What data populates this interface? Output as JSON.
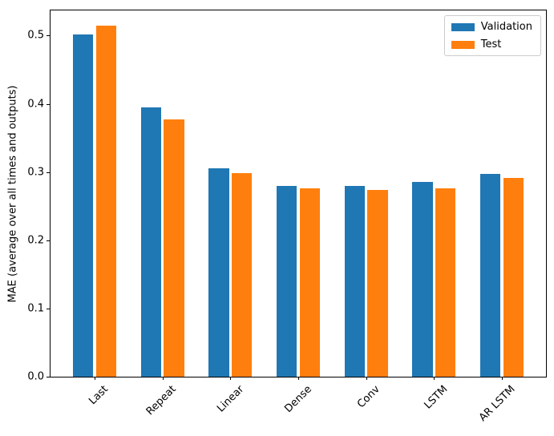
{
  "figure": {
    "background": "#ffffff"
  },
  "chart_data": {
    "type": "bar",
    "title": "",
    "xlabel": "",
    "ylabel": "MAE (average over all times and outputs)",
    "categories": [
      "Last",
      "Repeat",
      "Linear",
      "Dense",
      "Conv",
      "LSTM",
      "AR LSTM"
    ],
    "series": [
      {
        "name": "Validation",
        "color": "#1f77b4",
        "values": [
          0.502,
          0.395,
          0.306,
          0.28,
          0.28,
          0.286,
          0.297
        ]
      },
      {
        "name": "Test",
        "color": "#ff7f0e",
        "values": [
          0.515,
          0.377,
          0.298,
          0.276,
          0.274,
          0.276,
          0.291
        ]
      }
    ],
    "ylim": [
      0,
      0.537
    ],
    "yticks": [
      "0.0",
      "0.1",
      "0.2",
      "0.3",
      "0.4",
      "0.5"
    ],
    "x_tick_rotation_deg": 45,
    "grid": false,
    "legend": {
      "position": "upper-right",
      "entries": [
        "Validation",
        "Test"
      ]
    }
  }
}
